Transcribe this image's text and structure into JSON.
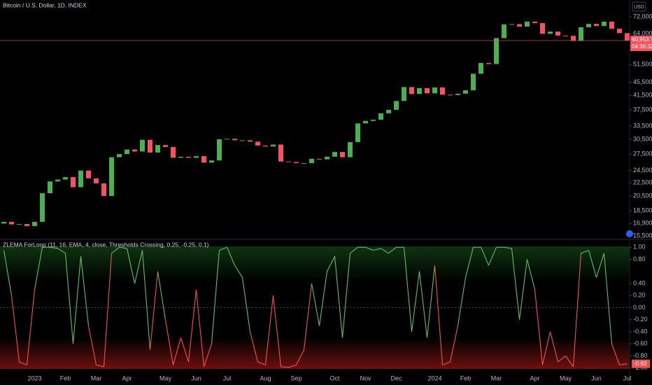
{
  "chart_data": [
    {
      "type": "candlestick",
      "title": "Bitcoin / U.S. Dollar, 1D, INDEX",
      "currency": "USD",
      "log_scale": true,
      "up_color": "#4caf50",
      "down_color": "#f7525f",
      "open": [
        16900,
        17100,
        16800,
        16850,
        16600,
        17100,
        20900,
        22700,
        23000,
        23400,
        21800,
        24500,
        23200,
        22400,
        20500,
        26900,
        27500,
        28400,
        28000,
        30400,
        27800,
        29300,
        28900,
        26800,
        27000,
        26800,
        27100,
        25900,
        26300,
        30500,
        30600,
        30300,
        30300,
        30000,
        29200,
        29000,
        29400,
        26100,
        26000,
        25800,
        25800,
        26600,
        26500,
        27000,
        27900,
        26900,
        29900,
        34100,
        34700,
        35000,
        36600,
        37500,
        39900,
        44000,
        41900,
        43700,
        42100,
        43900,
        41700,
        41600,
        42000,
        43000,
        48300,
        52100,
        51700,
        62000,
        68300,
        68400,
        67200,
        69600,
        68900,
        63900,
        64900,
        63100,
        63000,
        60800,
        66900,
        68500,
        67500,
        69600,
        66200,
        64200
      ],
      "close": [
        17100,
        16800,
        16850,
        16600,
        17100,
        20900,
        22700,
        23000,
        23400,
        21800,
        24500,
        23200,
        22400,
        20500,
        26900,
        27500,
        28400,
        28000,
        30400,
        27800,
        29300,
        28900,
        26800,
        27000,
        26800,
        27100,
        25900,
        26300,
        30500,
        30600,
        30300,
        30300,
        30000,
        29200,
        29000,
        29400,
        26100,
        26000,
        25800,
        25800,
        26600,
        26500,
        27000,
        27900,
        26900,
        29900,
        34100,
        34700,
        35000,
        36600,
        37500,
        39900,
        44000,
        41900,
        43700,
        42100,
        43900,
        41700,
        41600,
        42000,
        43000,
        48300,
        52100,
        51700,
        62000,
        68300,
        68400,
        67200,
        69600,
        68900,
        63900,
        64900,
        63100,
        63000,
        60800,
        66900,
        68500,
        67500,
        69600,
        66200,
        64200,
        60950
      ],
      "price_label": {
        "value": 60953.77,
        "label": "60,953.77"
      },
      "countdown": "04:38:32",
      "ylim": [
        15120,
        81000
      ],
      "yticks": [
        {
          "value": 72000,
          "label": "72,000.00"
        },
        {
          "value": 64000,
          "label": "64,000.00"
        },
        {
          "value": 51500,
          "label": "51,500.00"
        },
        {
          "value": 45500,
          "label": "45,500.00"
        },
        {
          "value": 41500,
          "label": "41,500.00"
        },
        {
          "value": 37500,
          "label": "37,500.00"
        },
        {
          "value": 33500,
          "label": "33,500.00"
        },
        {
          "value": 30500,
          "label": "30,500.00"
        },
        {
          "value": 27500,
          "label": "27,500.00"
        },
        {
          "value": 24500,
          "label": "24,500.00"
        },
        {
          "value": 22500,
          "label": "22,500.00"
        },
        {
          "value": 20500,
          "label": "20,500.00"
        },
        {
          "value": 18500,
          "label": "18,500.00"
        },
        {
          "value": 16900,
          "label": "16,900.00"
        },
        {
          "value": 15500,
          "label": "15,500.00"
        }
      ]
    },
    {
      "type": "line",
      "title": "ZLEMA ForLoop (11, 16, EMA, 4, close, Thresholds Crossing, 0.25, -0.25, 0.1)",
      "up_color": "#66bb6a",
      "down_color": "#ef5350",
      "categories": [
        null,
        null,
        null,
        null,
        "2023",
        null,
        null,
        null,
        "Feb",
        null,
        null,
        null,
        "Mar",
        null,
        null,
        null,
        "Apr",
        null,
        null,
        null,
        null,
        "May",
        null,
        null,
        null,
        "Jun",
        null,
        null,
        null,
        "Jul",
        null,
        null,
        null,
        null,
        "Aug",
        null,
        null,
        null,
        "Sep",
        null,
        null,
        null,
        null,
        "Oct",
        null,
        null,
        null,
        "Nov",
        null,
        null,
        null,
        "Dec",
        null,
        null,
        null,
        null,
        "2024",
        null,
        null,
        null,
        "Feb",
        null,
        null,
        null,
        "Mar",
        null,
        null,
        null,
        null,
        "Apr",
        null,
        null,
        null,
        "May",
        null,
        null,
        null,
        "Jun",
        null,
        null,
        null,
        "Jul"
      ],
      "values": [
        0.95,
        0.2,
        -0.9,
        -0.95,
        0.3,
        1.0,
        1.0,
        0.98,
        0.9,
        -0.6,
        0.85,
        -0.3,
        -0.95,
        -0.98,
        0.9,
        1.0,
        0.98,
        0.4,
        0.95,
        -0.7,
        0.6,
        -0.2,
        -0.95,
        -0.5,
        -0.9,
        0.3,
        -0.98,
        -0.6,
        0.95,
        1.0,
        0.7,
        0.5,
        -0.4,
        -0.9,
        -0.95,
        0.2,
        -0.98,
        -0.99,
        -0.95,
        -0.7,
        0.4,
        -0.3,
        0.6,
        0.85,
        -0.5,
        0.9,
        1.0,
        1.0,
        0.95,
        0.98,
        0.9,
        1.0,
        1.0,
        -0.4,
        0.6,
        -0.5,
        0.7,
        -0.95,
        -0.9,
        -0.3,
        0.5,
        1.0,
        1.0,
        0.7,
        1.0,
        1.0,
        0.98,
        -0.2,
        0.8,
        0.3,
        -0.95,
        -0.4,
        -0.9,
        -0.8,
        -0.98,
        0.9,
        0.95,
        0.5,
        0.9,
        -0.6,
        -0.95,
        -0.93
      ],
      "ylim": [
        -1.05,
        1.13
      ],
      "yticks": [
        {
          "value": 1,
          "label": "1.00"
        },
        {
          "value": 0.8,
          "label": "0.80"
        },
        {
          "value": 0.4,
          "label": "0.40"
        },
        {
          "value": 0.2,
          "label": "0.20"
        },
        {
          "value": 0,
          "label": "0.00"
        },
        {
          "value": -0.2,
          "label": "-0.20"
        },
        {
          "value": -0.4,
          "label": "-0.40"
        },
        {
          "value": -0.6,
          "label": "-0.60"
        },
        {
          "value": -0.8,
          "label": "-0.80"
        },
        {
          "value": -1,
          "label": "-1.00"
        }
      ]
    }
  ]
}
